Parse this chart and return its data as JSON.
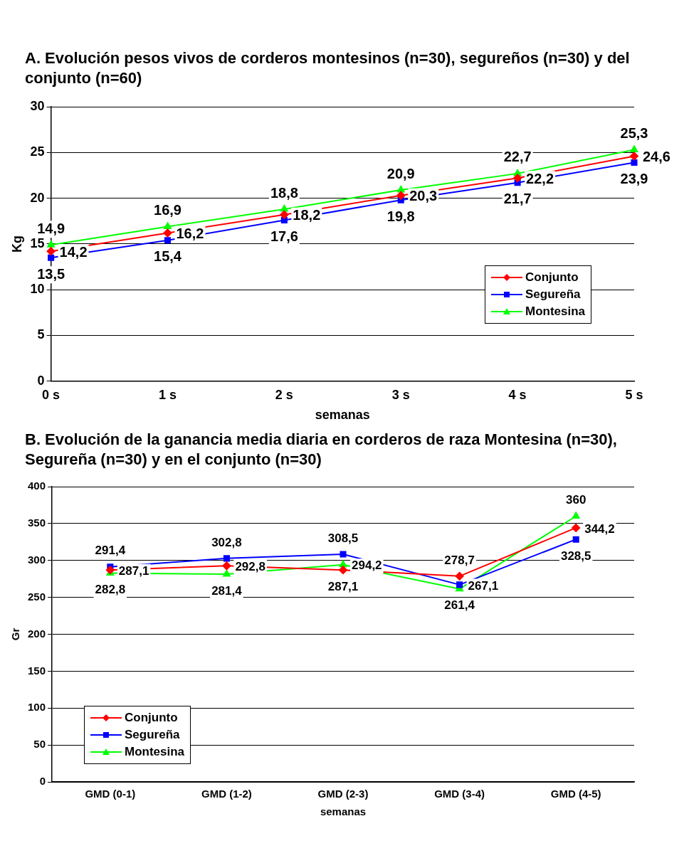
{
  "chart_data": [
    {
      "type": "line",
      "title": "A.       Evolución pesos vivos de corderos montesinos (n=30), segureños (n=30) y del conjunto (n=60)",
      "xlabel": "semanas",
      "ylabel": "Kg",
      "categories": [
        "0 s",
        "1 s",
        "2 s",
        "3 s",
        "4 s",
        "5 s"
      ],
      "ylim": [
        0,
        30
      ],
      "yticks": [
        0,
        5,
        10,
        15,
        20,
        25,
        30
      ],
      "grid": "y",
      "legend": "right",
      "series": [
        {
          "name": "Conjunto",
          "color": "#ff0000",
          "marker": "diamond",
          "values": [
            14.2,
            16.2,
            18.2,
            20.3,
            22.2,
            24.6
          ],
          "value_labels": [
            "14,2",
            "16,2",
            "18,2",
            "20,3",
            "22,2",
            "24,6"
          ]
        },
        {
          "name": "Segureña",
          "color": "#0000ff",
          "marker": "square",
          "values": [
            13.5,
            15.4,
            17.6,
            19.8,
            21.7,
            23.9
          ],
          "value_labels": [
            "13,5",
            "15,4",
            "17,6",
            "19,8",
            "21,7",
            "23,9"
          ]
        },
        {
          "name": "Montesina",
          "color": "#00ff00",
          "marker": "triangle",
          "values": [
            14.9,
            16.9,
            18.8,
            20.9,
            22.7,
            25.3
          ],
          "value_labels": [
            "14,9",
            "16,9",
            "18,8",
            "20,9",
            "22,7",
            "25,3"
          ]
        }
      ]
    },
    {
      "type": "line",
      "title": "B.       Evolución de la ganancia media diaria en corderos de raza Montesina (n=30), Segureña (n=30) y en el conjunto (n=30)",
      "xlabel": "semanas",
      "ylabel": "Gr",
      "categories": [
        "GMD (0-1)",
        "GMD (1-2)",
        "GMD (2-3)",
        "GMD (3-4)",
        "GMD (4-5)"
      ],
      "ylim": [
        0,
        400
      ],
      "yticks": [
        0,
        50,
        100,
        150,
        200,
        250,
        300,
        350,
        400
      ],
      "grid": "y",
      "legend": "bottom left",
      "series": [
        {
          "name": "Conjunto",
          "color": "#ff0000",
          "marker": "diamond",
          "values": [
            287.1,
            292.8,
            287.1,
            278.7,
            344.2
          ],
          "value_labels": [
            "287,1",
            "292,8",
            "287,1",
            "278,7",
            "344,2"
          ]
        },
        {
          "name": "Segureña",
          "color": "#0000ff",
          "marker": "square",
          "values": [
            291.4,
            302.8,
            308.5,
            267.1,
            328.5
          ],
          "value_labels": [
            "291,4",
            "302,8",
            "308,5",
            "267,1",
            "328,5"
          ]
        },
        {
          "name": "Montesina",
          "color": "#00ff00",
          "marker": "triangle",
          "values": [
            282.8,
            281.4,
            294.2,
            261.4,
            360
          ],
          "value_labels": [
            "282,8",
            "281,4",
            "294,2",
            "261,4",
            "360"
          ]
        }
      ]
    }
  ]
}
